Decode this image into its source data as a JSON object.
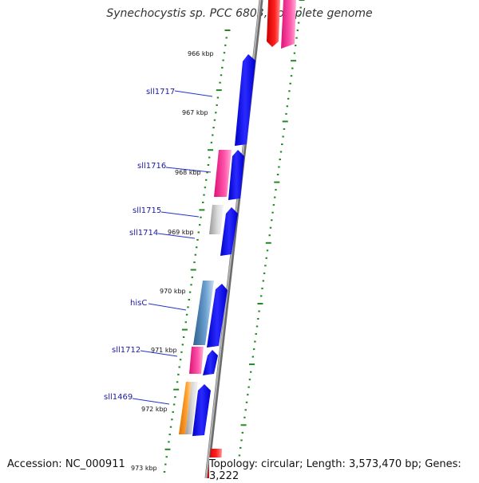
{
  "title": "Synechocystis sp. PCC 6803, complete genome",
  "footer": {
    "accession": "Accession: NC_000911",
    "topology": "Topology: circular; Length: 3,573,470 bp; Genes: 3,222"
  },
  "colors": {
    "forward_strand": "#0000ee",
    "hypothetical": "#ee2288",
    "unknown": "#aaaaaa",
    "amino_acid": "#3b6fa0",
    "cofactor": "#f08c00",
    "red": "#ee0000",
    "tick": "#228822",
    "backbone": "#888888",
    "label": "#1a1aa6"
  },
  "kbp_ticks": [
    {
      "label": "966 kbp"
    },
    {
      "label": "967 kbp"
    },
    {
      "label": "968 kbp"
    },
    {
      "label": "969 kbp"
    },
    {
      "label": "970 kbp"
    },
    {
      "label": "971 kbp"
    },
    {
      "label": "972 kbp"
    },
    {
      "label": "973 kbp"
    }
  ],
  "gene_labels": [
    {
      "name": "sll1717"
    },
    {
      "name": "sll1716"
    },
    {
      "name": "sll1715"
    },
    {
      "name": "sll1714"
    },
    {
      "name": "hisC"
    },
    {
      "name": "sll1712"
    },
    {
      "name": "sll1469"
    }
  ]
}
